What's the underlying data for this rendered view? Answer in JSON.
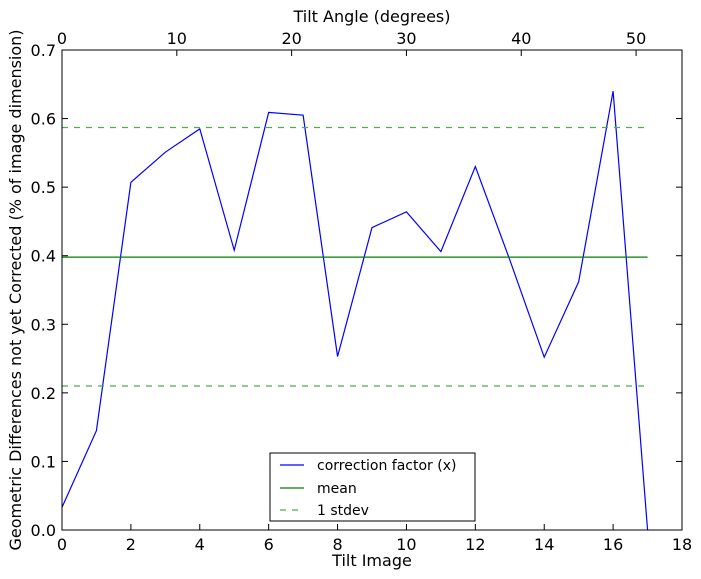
{
  "chart_data": {
    "type": "line",
    "xlabel": "Tilt Image",
    "ylabel": "Geometric Differences not yet Corrected (% of image dimension)",
    "top_xlabel": "Tilt Angle (degrees)",
    "xlim": [
      0,
      18
    ],
    "ylim": [
      0,
      0.7
    ],
    "top_xlim": [
      0,
      54
    ],
    "xticks": [
      0,
      2,
      4,
      6,
      8,
      10,
      12,
      14,
      16,
      18
    ],
    "yticks": [
      0.0,
      0.1,
      0.2,
      0.3,
      0.4,
      0.5,
      0.6,
      0.7
    ],
    "top_xticks": [
      0,
      10,
      20,
      30,
      40,
      50
    ],
    "xtick_labels": [
      "0",
      "2",
      "4",
      "6",
      "8",
      "10",
      "12",
      "14",
      "16",
      "18"
    ],
    "ytick_labels": [
      "0.0",
      "0.1",
      "0.2",
      "0.3",
      "0.4",
      "0.5",
      "0.6",
      "0.7"
    ],
    "top_xtick_labels": [
      "0",
      "10",
      "20",
      "30",
      "40",
      "50"
    ],
    "grid": false,
    "legend_position": "bottom-center",
    "series": [
      {
        "name": "correction factor (x)",
        "color": "#0000ff",
        "style": "solid",
        "x": [
          0,
          1,
          2,
          3,
          4,
          5,
          6,
          7,
          8,
          9,
          10,
          11,
          12,
          13,
          14,
          15,
          16,
          17
        ],
        "y": [
          0.033,
          0.145,
          0.507,
          0.551,
          0.585,
          0.408,
          0.609,
          0.605,
          0.253,
          0.441,
          0.464,
          0.406,
          0.53,
          0.394,
          0.252,
          0.362,
          0.64,
          0.0
        ]
      },
      {
        "name": "mean",
        "color": "#008000",
        "style": "solid",
        "x": [
          0,
          17
        ],
        "y": [
          0.398,
          0.398
        ]
      },
      {
        "name": "1 stdev",
        "color": "#4caf4c",
        "style": "dashed",
        "x": [
          0,
          17
        ],
        "y": [
          0.587,
          0.587
        ]
      },
      {
        "name": "",
        "color": "#4caf4c",
        "style": "dashed",
        "x": [
          0,
          17
        ],
        "y": [
          0.21,
          0.21
        ]
      }
    ],
    "legend": [
      {
        "label": "correction factor (x)",
        "color": "#0000ff",
        "style": "solid"
      },
      {
        "label": "mean",
        "color": "#008000",
        "style": "solid"
      },
      {
        "label": "1 stdev",
        "color": "#4caf4c",
        "style": "dashed"
      }
    ]
  }
}
